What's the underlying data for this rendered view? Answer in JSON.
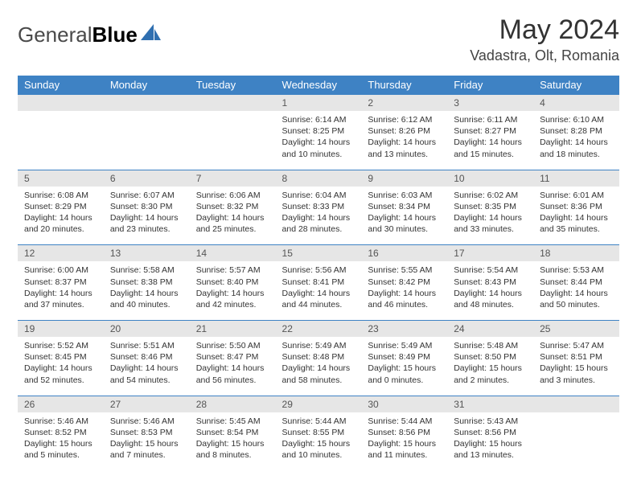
{
  "brand": {
    "part1": "General",
    "part2": "Blue"
  },
  "title": "May 2024",
  "location": "Vadastra, Olt, Romania",
  "colors": {
    "header_bg": "#3e82c4",
    "header_text": "#ffffff",
    "daynum_bg": "#e6e6e6",
    "row_divider": "#3e82c4",
    "body_text": "#333333",
    "page_bg": "#ffffff"
  },
  "day_headers": [
    "Sunday",
    "Monday",
    "Tuesday",
    "Wednesday",
    "Thursday",
    "Friday",
    "Saturday"
  ],
  "weeks": [
    [
      {
        "n": "",
        "sunrise": "",
        "sunset": "",
        "daylight1": "",
        "daylight2": ""
      },
      {
        "n": "",
        "sunrise": "",
        "sunset": "",
        "daylight1": "",
        "daylight2": ""
      },
      {
        "n": "",
        "sunrise": "",
        "sunset": "",
        "daylight1": "",
        "daylight2": ""
      },
      {
        "n": "1",
        "sunrise": "Sunrise: 6:14 AM",
        "sunset": "Sunset: 8:25 PM",
        "daylight1": "Daylight: 14 hours",
        "daylight2": "and 10 minutes."
      },
      {
        "n": "2",
        "sunrise": "Sunrise: 6:12 AM",
        "sunset": "Sunset: 8:26 PM",
        "daylight1": "Daylight: 14 hours",
        "daylight2": "and 13 minutes."
      },
      {
        "n": "3",
        "sunrise": "Sunrise: 6:11 AM",
        "sunset": "Sunset: 8:27 PM",
        "daylight1": "Daylight: 14 hours",
        "daylight2": "and 15 minutes."
      },
      {
        "n": "4",
        "sunrise": "Sunrise: 6:10 AM",
        "sunset": "Sunset: 8:28 PM",
        "daylight1": "Daylight: 14 hours",
        "daylight2": "and 18 minutes."
      }
    ],
    [
      {
        "n": "5",
        "sunrise": "Sunrise: 6:08 AM",
        "sunset": "Sunset: 8:29 PM",
        "daylight1": "Daylight: 14 hours",
        "daylight2": "and 20 minutes."
      },
      {
        "n": "6",
        "sunrise": "Sunrise: 6:07 AM",
        "sunset": "Sunset: 8:30 PM",
        "daylight1": "Daylight: 14 hours",
        "daylight2": "and 23 minutes."
      },
      {
        "n": "7",
        "sunrise": "Sunrise: 6:06 AM",
        "sunset": "Sunset: 8:32 PM",
        "daylight1": "Daylight: 14 hours",
        "daylight2": "and 25 minutes."
      },
      {
        "n": "8",
        "sunrise": "Sunrise: 6:04 AM",
        "sunset": "Sunset: 8:33 PM",
        "daylight1": "Daylight: 14 hours",
        "daylight2": "and 28 minutes."
      },
      {
        "n": "9",
        "sunrise": "Sunrise: 6:03 AM",
        "sunset": "Sunset: 8:34 PM",
        "daylight1": "Daylight: 14 hours",
        "daylight2": "and 30 minutes."
      },
      {
        "n": "10",
        "sunrise": "Sunrise: 6:02 AM",
        "sunset": "Sunset: 8:35 PM",
        "daylight1": "Daylight: 14 hours",
        "daylight2": "and 33 minutes."
      },
      {
        "n": "11",
        "sunrise": "Sunrise: 6:01 AM",
        "sunset": "Sunset: 8:36 PM",
        "daylight1": "Daylight: 14 hours",
        "daylight2": "and 35 minutes."
      }
    ],
    [
      {
        "n": "12",
        "sunrise": "Sunrise: 6:00 AM",
        "sunset": "Sunset: 8:37 PM",
        "daylight1": "Daylight: 14 hours",
        "daylight2": "and 37 minutes."
      },
      {
        "n": "13",
        "sunrise": "Sunrise: 5:58 AM",
        "sunset": "Sunset: 8:38 PM",
        "daylight1": "Daylight: 14 hours",
        "daylight2": "and 40 minutes."
      },
      {
        "n": "14",
        "sunrise": "Sunrise: 5:57 AM",
        "sunset": "Sunset: 8:40 PM",
        "daylight1": "Daylight: 14 hours",
        "daylight2": "and 42 minutes."
      },
      {
        "n": "15",
        "sunrise": "Sunrise: 5:56 AM",
        "sunset": "Sunset: 8:41 PM",
        "daylight1": "Daylight: 14 hours",
        "daylight2": "and 44 minutes."
      },
      {
        "n": "16",
        "sunrise": "Sunrise: 5:55 AM",
        "sunset": "Sunset: 8:42 PM",
        "daylight1": "Daylight: 14 hours",
        "daylight2": "and 46 minutes."
      },
      {
        "n": "17",
        "sunrise": "Sunrise: 5:54 AM",
        "sunset": "Sunset: 8:43 PM",
        "daylight1": "Daylight: 14 hours",
        "daylight2": "and 48 minutes."
      },
      {
        "n": "18",
        "sunrise": "Sunrise: 5:53 AM",
        "sunset": "Sunset: 8:44 PM",
        "daylight1": "Daylight: 14 hours",
        "daylight2": "and 50 minutes."
      }
    ],
    [
      {
        "n": "19",
        "sunrise": "Sunrise: 5:52 AM",
        "sunset": "Sunset: 8:45 PM",
        "daylight1": "Daylight: 14 hours",
        "daylight2": "and 52 minutes."
      },
      {
        "n": "20",
        "sunrise": "Sunrise: 5:51 AM",
        "sunset": "Sunset: 8:46 PM",
        "daylight1": "Daylight: 14 hours",
        "daylight2": "and 54 minutes."
      },
      {
        "n": "21",
        "sunrise": "Sunrise: 5:50 AM",
        "sunset": "Sunset: 8:47 PM",
        "daylight1": "Daylight: 14 hours",
        "daylight2": "and 56 minutes."
      },
      {
        "n": "22",
        "sunrise": "Sunrise: 5:49 AM",
        "sunset": "Sunset: 8:48 PM",
        "daylight1": "Daylight: 14 hours",
        "daylight2": "and 58 minutes."
      },
      {
        "n": "23",
        "sunrise": "Sunrise: 5:49 AM",
        "sunset": "Sunset: 8:49 PM",
        "daylight1": "Daylight: 15 hours",
        "daylight2": "and 0 minutes."
      },
      {
        "n": "24",
        "sunrise": "Sunrise: 5:48 AM",
        "sunset": "Sunset: 8:50 PM",
        "daylight1": "Daylight: 15 hours",
        "daylight2": "and 2 minutes."
      },
      {
        "n": "25",
        "sunrise": "Sunrise: 5:47 AM",
        "sunset": "Sunset: 8:51 PM",
        "daylight1": "Daylight: 15 hours",
        "daylight2": "and 3 minutes."
      }
    ],
    [
      {
        "n": "26",
        "sunrise": "Sunrise: 5:46 AM",
        "sunset": "Sunset: 8:52 PM",
        "daylight1": "Daylight: 15 hours",
        "daylight2": "and 5 minutes."
      },
      {
        "n": "27",
        "sunrise": "Sunrise: 5:46 AM",
        "sunset": "Sunset: 8:53 PM",
        "daylight1": "Daylight: 15 hours",
        "daylight2": "and 7 minutes."
      },
      {
        "n": "28",
        "sunrise": "Sunrise: 5:45 AM",
        "sunset": "Sunset: 8:54 PM",
        "daylight1": "Daylight: 15 hours",
        "daylight2": "and 8 minutes."
      },
      {
        "n": "29",
        "sunrise": "Sunrise: 5:44 AM",
        "sunset": "Sunset: 8:55 PM",
        "daylight1": "Daylight: 15 hours",
        "daylight2": "and 10 minutes."
      },
      {
        "n": "30",
        "sunrise": "Sunrise: 5:44 AM",
        "sunset": "Sunset: 8:56 PM",
        "daylight1": "Daylight: 15 hours",
        "daylight2": "and 11 minutes."
      },
      {
        "n": "31",
        "sunrise": "Sunrise: 5:43 AM",
        "sunset": "Sunset: 8:56 PM",
        "daylight1": "Daylight: 15 hours",
        "daylight2": "and 13 minutes."
      },
      {
        "n": "",
        "sunrise": "",
        "sunset": "",
        "daylight1": "",
        "daylight2": ""
      }
    ]
  ]
}
